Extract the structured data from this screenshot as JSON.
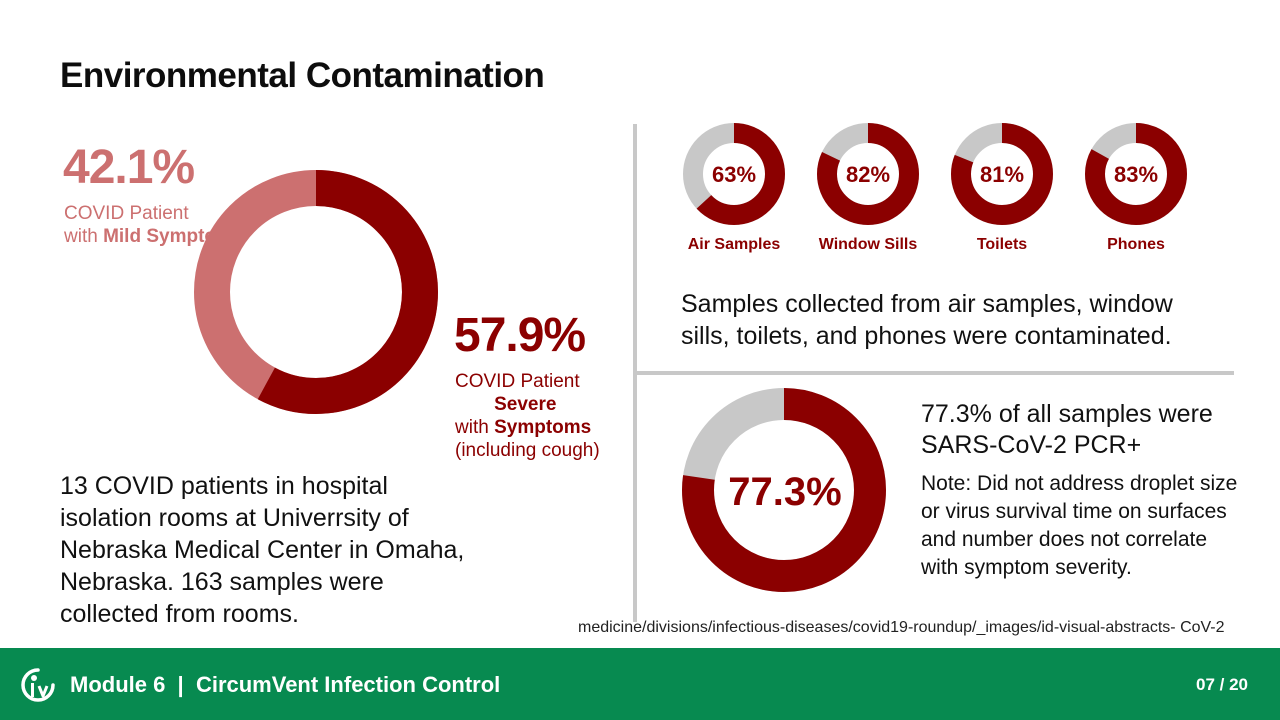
{
  "title": "Environmental Contamination",
  "colors": {
    "severe": "#8b0000",
    "mild": "#cc7070",
    "gray": "#c8c8c8",
    "footer": "#078a50"
  },
  "main_chart": {
    "mild": {
      "pct_text": "42.1%",
      "value": 42.1,
      "label_line1": "COVID Patient",
      "label_prefix": "with ",
      "label_bold": "Mild Symptoms"
    },
    "severe": {
      "pct_text": "57.9%",
      "value": 57.9,
      "label_line1": "COVID Patient",
      "label_prefix": "with ",
      "label_bold": "Severe Symptoms",
      "label_suffix": "(including cough)"
    }
  },
  "patients_text": "13 COVID patients in hospital isolation rooms at Univerrsity of Nebraska Medical Center in Omaha, Nebraska. 163 samples were collected from rooms.",
  "sample_sites": [
    {
      "label": "Air Samples",
      "pct_text": "63%",
      "value": 63
    },
    {
      "label": "Window Sills",
      "pct_text": "82%",
      "value": 82
    },
    {
      "label": "Toilets",
      "pct_text": "81%",
      "value": 81
    },
    {
      "label": "Phones",
      "pct_text": "83%",
      "value": 83
    }
  ],
  "samples_text": "Samples collected from air samples, window sills, toilets, and phones were contaminated.",
  "total": {
    "pct_text": "77.3%",
    "value": 77.3,
    "headline": "77.3% of all samples were SARS-CoV-2 PCR+",
    "note": "Note: Did not address droplet size or virus survival time on surfaces and number does not correlate with symptom severity."
  },
  "source": "medicine/divisions/infectious-diseases/covid19-roundup/_images/id-visual-abstracts- CoV-2",
  "footer": {
    "module": "Module 6  |  CircumVent Infection Control",
    "page": "07 / 20",
    "icon": "circumvent-logo-icon"
  }
}
